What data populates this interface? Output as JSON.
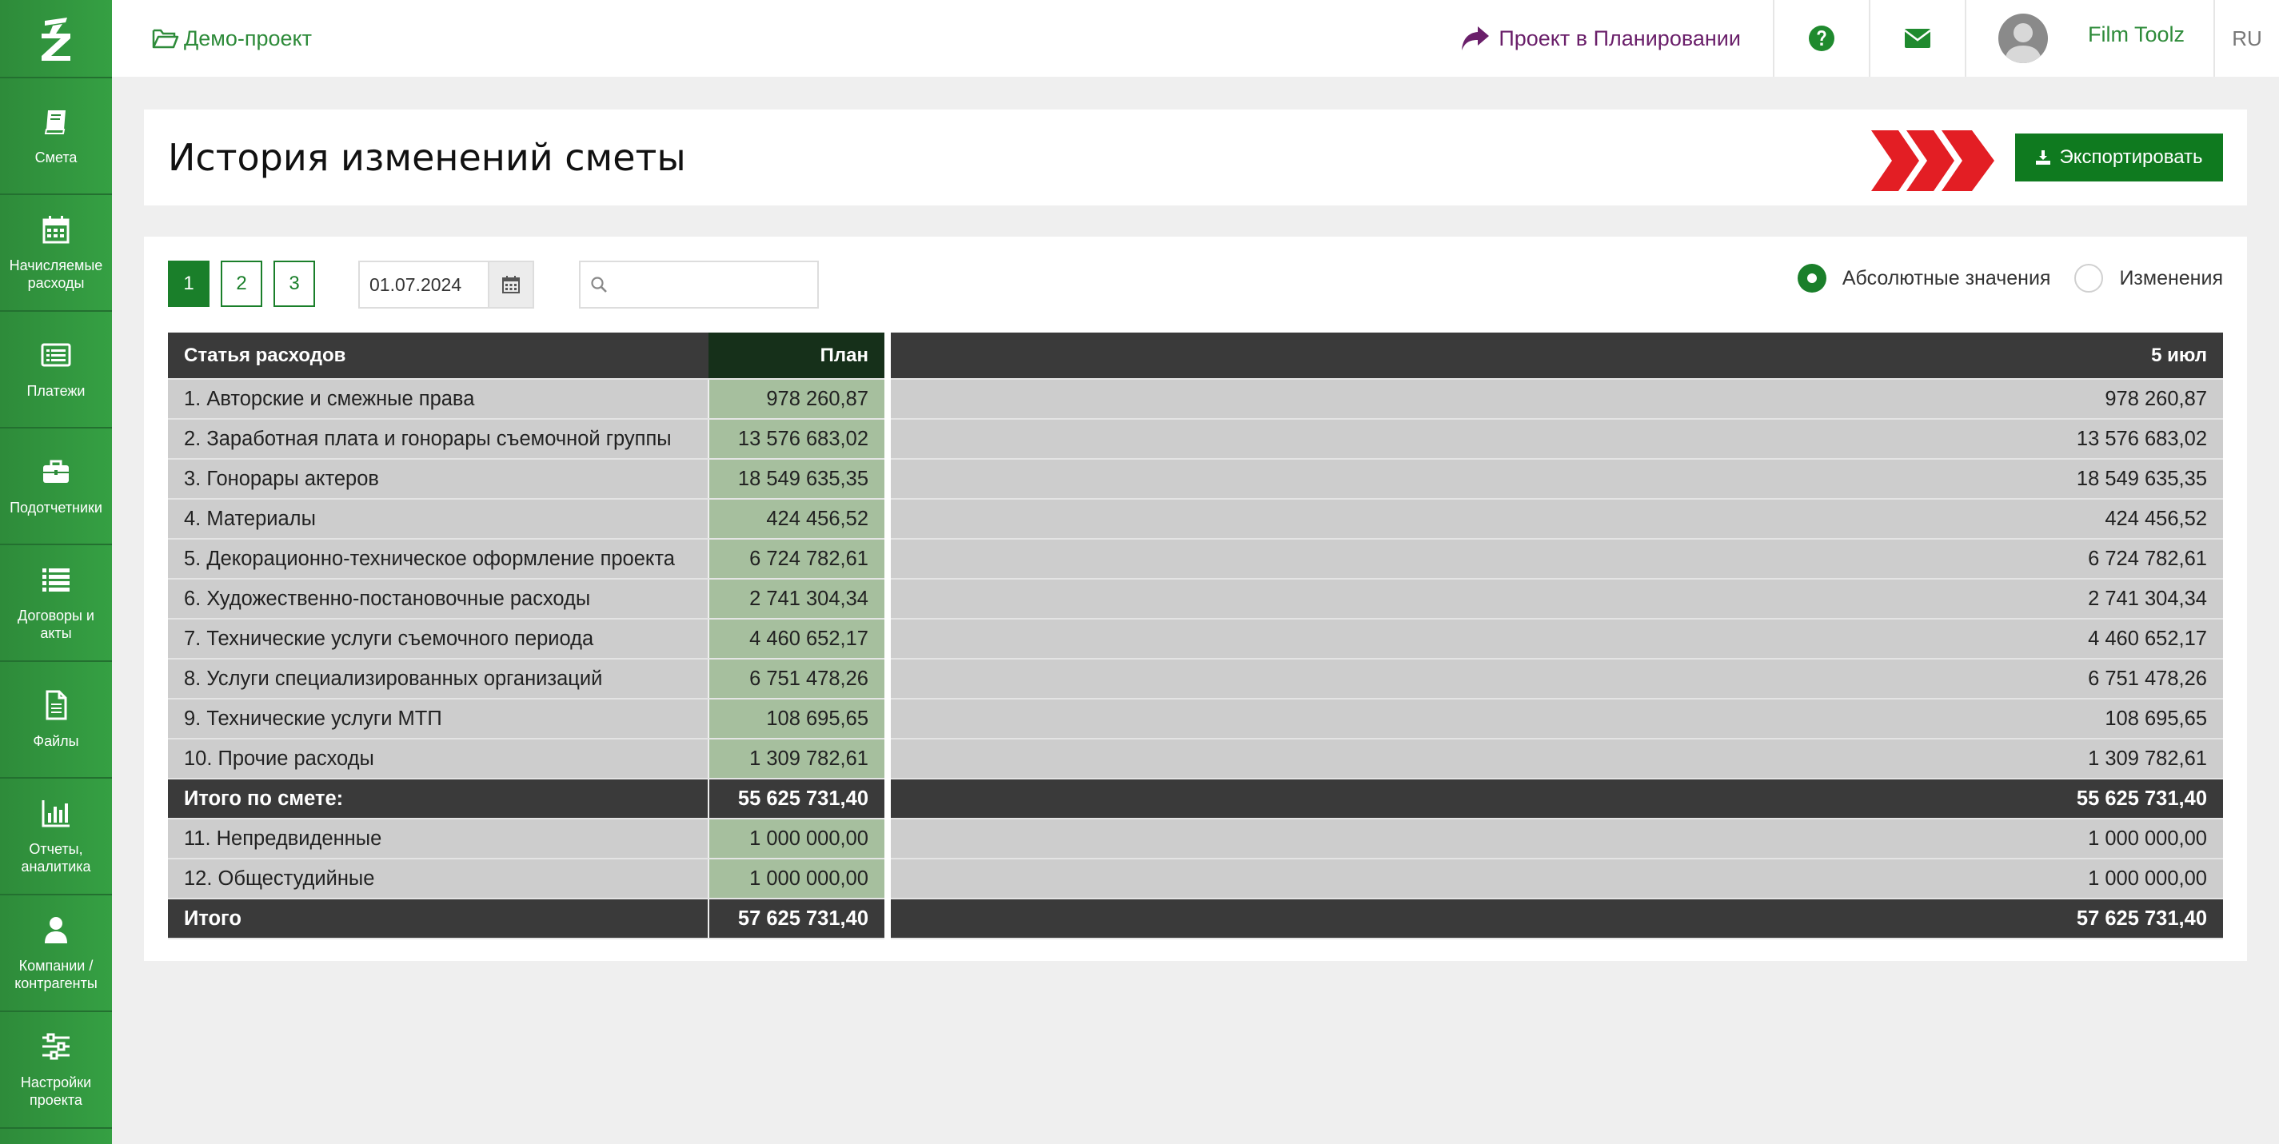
{
  "app": {
    "project_name": "Демо-проект",
    "status_text": "Проект в Планировании",
    "user_name": "Film Toolz",
    "language": "RU",
    "accent_color": "#2e8b3a",
    "status_color": "#6a1f6a"
  },
  "sidebar": {
    "items": [
      {
        "label": "Смета",
        "icon": "book-icon"
      },
      {
        "label": "Начисляемые расходы",
        "icon": "calendar-icon"
      },
      {
        "label": "Платежи",
        "icon": "list-card-icon"
      },
      {
        "label": "Подотчетники",
        "icon": "briefcase-icon"
      },
      {
        "label": "Договоры и акты",
        "icon": "list-icon"
      },
      {
        "label": "Файлы",
        "icon": "file-icon"
      },
      {
        "label": "Отчеты, аналитика",
        "icon": "bar-chart-icon"
      },
      {
        "label": "Компании / контрагенты",
        "icon": "user-icon"
      },
      {
        "label": "Настройки проекта",
        "icon": "sliders-icon"
      }
    ]
  },
  "page": {
    "title": "История изменений сметы",
    "export_label": "Экспортировать"
  },
  "filters": {
    "pages": [
      "1",
      "2",
      "3"
    ],
    "active_page": "1",
    "date": "01.07.2024",
    "search_value": "",
    "radio_absolute": "Абсолютные значения",
    "radio_changes": "Изменения",
    "selected_mode": "Абсолютные значения"
  },
  "table": {
    "headers": {
      "name": "Статья расходов",
      "plan": "План",
      "col": "5 июл"
    },
    "rows": [
      {
        "name": "1. Авторские и смежные права",
        "plan": "978 260,87",
        "val": "978 260,87"
      },
      {
        "name": "2. Заработная плата и гонорары съемочной группы",
        "plan": "13 576 683,02",
        "val": "13 576 683,02"
      },
      {
        "name": "3. Гонорары актеров",
        "plan": "18 549 635,35",
        "val": "18 549 635,35"
      },
      {
        "name": "4. Материалы",
        "plan": "424 456,52",
        "val": "424 456,52"
      },
      {
        "name": "5. Декорационно-техническое оформление проекта",
        "plan": "6 724 782,61",
        "val": "6 724 782,61"
      },
      {
        "name": "6. Художественно-постановочные расходы",
        "plan": "2 741 304,34",
        "val": "2 741 304,34"
      },
      {
        "name": "7. Технические услуги съемочного периода",
        "plan": "4 460 652,17",
        "val": "4 460 652,17"
      },
      {
        "name": "8. Услуги специализированных организаций",
        "plan": "6 751 478,26",
        "val": "6 751 478,26"
      },
      {
        "name": "9. Технические услуги МТП",
        "plan": "108 695,65",
        "val": "108 695,65"
      },
      {
        "name": "10. Прочие расходы",
        "plan": "1 309 782,61",
        "val": "1 309 782,61"
      },
      {
        "name": "Итого по смете:",
        "plan": "55 625 731,40",
        "val": "55 625 731,40",
        "total": true
      },
      {
        "name": "11. Непредвиденные",
        "plan": "1 000 000,00",
        "val": "1 000 000,00"
      },
      {
        "name": "12. Общестудийные",
        "plan": "1 000 000,00",
        "val": "1 000 000,00"
      },
      {
        "name": "Итого",
        "plan": "57 625 731,40",
        "val": "57 625 731,40",
        "total": true
      }
    ]
  }
}
